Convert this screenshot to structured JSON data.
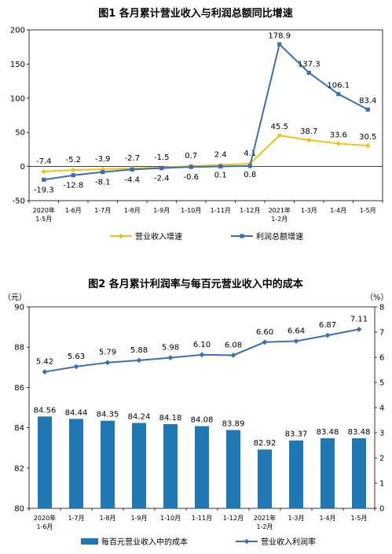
{
  "chart_data": [
    {
      "type": "line",
      "title": "图1  各月累计营业收入与利润总额同比增速",
      "categories": [
        [
          "2020年",
          "1-5月"
        ],
        [
          "1-6月"
        ],
        [
          "1-7月"
        ],
        [
          "1-8月"
        ],
        [
          "1-9月"
        ],
        [
          "1-10月"
        ],
        [
          "1-11月"
        ],
        [
          "1-12月"
        ],
        [
          "2021年",
          "1-2月"
        ],
        [
          "1-3月"
        ],
        [
          "1-4月"
        ],
        [
          "1-5月"
        ]
      ],
      "ylim": [
        -50,
        200
      ],
      "yticks": [
        "-50",
        "0",
        "50",
        "100",
        "150",
        "200"
      ],
      "ytick_values": [
        -50,
        0,
        50,
        100,
        150,
        200
      ],
      "grid": false,
      "legend_position": "bottom",
      "series": [
        {
          "name": "营业收入增速",
          "color": "#F2C114",
          "values": [
            -7.4,
            -5.2,
            -3.9,
            -2.7,
            -1.5,
            0.7,
            2.4,
            4.1,
            45.5,
            38.7,
            33.6,
            30.5
          ],
          "labels": [
            "-7.4",
            "-5.2",
            "-3.9",
            "-2.7",
            "-1.5",
            "0.7",
            "2.4",
            "4.1",
            "45.5",
            "38.7",
            "33.6",
            "30.5"
          ]
        },
        {
          "name": "利润总额增速",
          "color": "#3B6EB5",
          "values": [
            -19.3,
            -12.8,
            -8.1,
            -4.4,
            -2.4,
            -0.6,
            0.1,
            0.8,
            178.9,
            137.3,
            106.1,
            83.4
          ],
          "labels": [
            "-19.3",
            "-12.8",
            "-8.1",
            "-4.4",
            "-2.4",
            "-0.6",
            "0.1",
            "0.8",
            "178.9",
            "137.3",
            "106.1",
            "83.4"
          ]
        }
      ]
    },
    {
      "type": "bar+line",
      "title": "图2  各月累计利润率与每百元营业收入中的成本",
      "categories": [
        [
          "2020年",
          "1-6月"
        ],
        [
          "1-7月"
        ],
        [
          "1-8月"
        ],
        [
          "1-9月"
        ],
        [
          "1-10月"
        ],
        [
          "1-11月"
        ],
        [
          "1-12月"
        ],
        [
          "2021年",
          "1-2月"
        ],
        [
          "1-3月"
        ],
        [
          "1-4月"
        ],
        [
          "1-5月"
        ]
      ],
      "y_left_unit": "（元）",
      "y_right_unit": "（%）",
      "ylim_left": [
        80,
        90
      ],
      "yticks_left": [
        "80",
        "82",
        "84",
        "86",
        "88",
        "90"
      ],
      "ytick_values_left": [
        80,
        82,
        84,
        86,
        88,
        90
      ],
      "ylim_right": [
        0,
        8
      ],
      "yticks_right": [
        "0",
        "1",
        "2",
        "3",
        "4",
        "5",
        "6",
        "7",
        "8"
      ],
      "ytick_values_right": [
        0,
        1,
        2,
        3,
        4,
        5,
        6,
        7,
        8
      ],
      "grid": false,
      "legend_position": "bottom",
      "bar_series": {
        "name": "每百元营业收入中的成本",
        "color": "#1F77B4",
        "axis": "left",
        "values": [
          84.56,
          84.44,
          84.35,
          84.24,
          84.18,
          84.08,
          83.89,
          82.92,
          83.37,
          83.48,
          83.48
        ],
        "labels": [
          "84.56",
          "84.44",
          "84.35",
          "84.24",
          "84.18",
          "84.08",
          "83.89",
          "82.92",
          "83.37",
          "83.48",
          "83.48"
        ]
      },
      "line_series": {
        "name": "营业收入利润率",
        "color": "#3B6EB5",
        "axis": "right",
        "values": [
          5.42,
          5.63,
          5.79,
          5.88,
          5.98,
          6.1,
          6.08,
          6.6,
          6.64,
          6.87,
          7.11
        ],
        "labels": [
          "5.42",
          "5.63",
          "5.79",
          "5.88",
          "5.98",
          "6.10",
          "6.08",
          "6.60",
          "6.64",
          "6.87",
          "7.11"
        ]
      }
    }
  ]
}
